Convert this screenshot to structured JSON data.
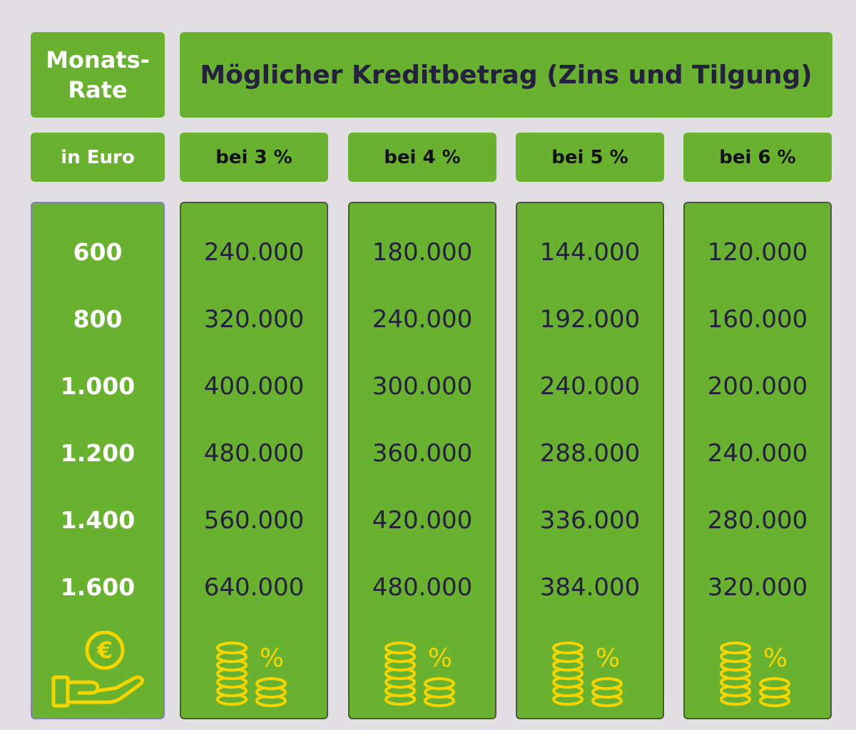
{
  "header": {
    "rate_label_line1": "Monats-",
    "rate_label_line2": "Rate",
    "title": "Möglicher Kreditbetrag (Zins und Tilgung)"
  },
  "subheader": {
    "unit_label": "in Euro",
    "rates": [
      "bei 3 %",
      "bei 4 %",
      "bei 5 %",
      "bei 6 %"
    ]
  },
  "table": {
    "monthly_rates": [
      "600",
      "800",
      "1.000",
      "1.200",
      "1.400",
      "1.600"
    ],
    "columns": [
      {
        "values": [
          "240.000",
          "320.000",
          "400.000",
          "480.000",
          "560.000",
          "640.000"
        ]
      },
      {
        "values": [
          "180.000",
          "240.000",
          "300.000",
          "360.000",
          "420.000",
          "480.000"
        ]
      },
      {
        "values": [
          "144.000",
          "192.000",
          "240.000",
          "288.000",
          "336.000",
          "384.000"
        ]
      },
      {
        "values": [
          "120.000",
          "160.000",
          "200.000",
          "240.000",
          "280.000",
          "320.000"
        ]
      }
    ]
  },
  "icons": {
    "left": "hand-euro-coin-icon",
    "columns": "coin-stack-percent-icon",
    "percent_glyph": "%",
    "euro_glyph": "€"
  },
  "colors": {
    "background": "#e2dfe4",
    "cell_green": "#68b22f",
    "header_text": "#25203d",
    "icon_yellow": "#f5d400"
  }
}
